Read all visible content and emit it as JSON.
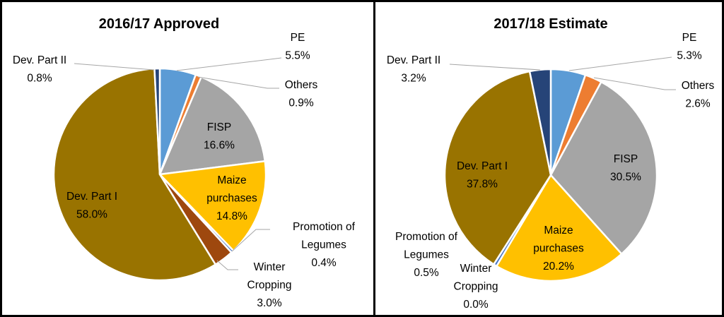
{
  "chart_data": [
    {
      "type": "pie",
      "title": "2016/17 Approved",
      "slices": [
        {
          "label": "PE",
          "value": 5.5,
          "text": "5.5%",
          "color": "#5B9BD5"
        },
        {
          "label": "Others",
          "value": 0.9,
          "text": "0.9%",
          "color": "#ED7D31"
        },
        {
          "label": "FISP",
          "value": 16.6,
          "text": "16.6%",
          "color": "#A5A5A5"
        },
        {
          "label": "Maize purchases",
          "lines": [
            "Maize",
            "purchases"
          ],
          "value": 14.8,
          "text": "14.8%",
          "color": "#FFC000"
        },
        {
          "label": "Promotion of Legumes",
          "lines": [
            "Promotion of",
            "Legumes"
          ],
          "value": 0.4,
          "text": "0.4%",
          "color": "#4472C4"
        },
        {
          "label": "Winter Cropping",
          "lines": [
            "Winter",
            "Cropping"
          ],
          "value": 3.0,
          "text": "3.0%",
          "color": "#9E480E"
        },
        {
          "label": "Dev. Part I",
          "value": 58.0,
          "text": "58.0%",
          "color": "#997300"
        },
        {
          "label": "Dev. Part II",
          "value": 0.8,
          "text": "0.8%",
          "color": "#264478"
        }
      ]
    },
    {
      "type": "pie",
      "title": "2017/18 Estimate",
      "slices": [
        {
          "label": "PE",
          "value": 5.3,
          "text": "5.3%",
          "color": "#5B9BD5"
        },
        {
          "label": "Others",
          "value": 2.6,
          "text": "2.6%",
          "color": "#ED7D31"
        },
        {
          "label": "FISP",
          "value": 30.5,
          "text": "30.5%",
          "color": "#A5A5A5"
        },
        {
          "label": "Maize purchases",
          "lines": [
            "Maize",
            "purchases"
          ],
          "value": 20.2,
          "text": "20.2%",
          "color": "#FFC000"
        },
        {
          "label": "Winter Cropping",
          "lines": [
            "Winter",
            "Cropping"
          ],
          "value": 0.0,
          "text": "0.0%",
          "color": "#9E480E"
        },
        {
          "label": "Promotion of Legumes",
          "lines": [
            "Promotion of",
            "Legumes"
          ],
          "value": 0.5,
          "text": "0.5%",
          "color": "#4472C4"
        },
        {
          "label": "Dev. Part I",
          "value": 37.8,
          "text": "37.8%",
          "color": "#997300"
        },
        {
          "label": "Dev. Part II",
          "value": 3.2,
          "text": "3.2%",
          "color": "#264478"
        }
      ]
    }
  ]
}
